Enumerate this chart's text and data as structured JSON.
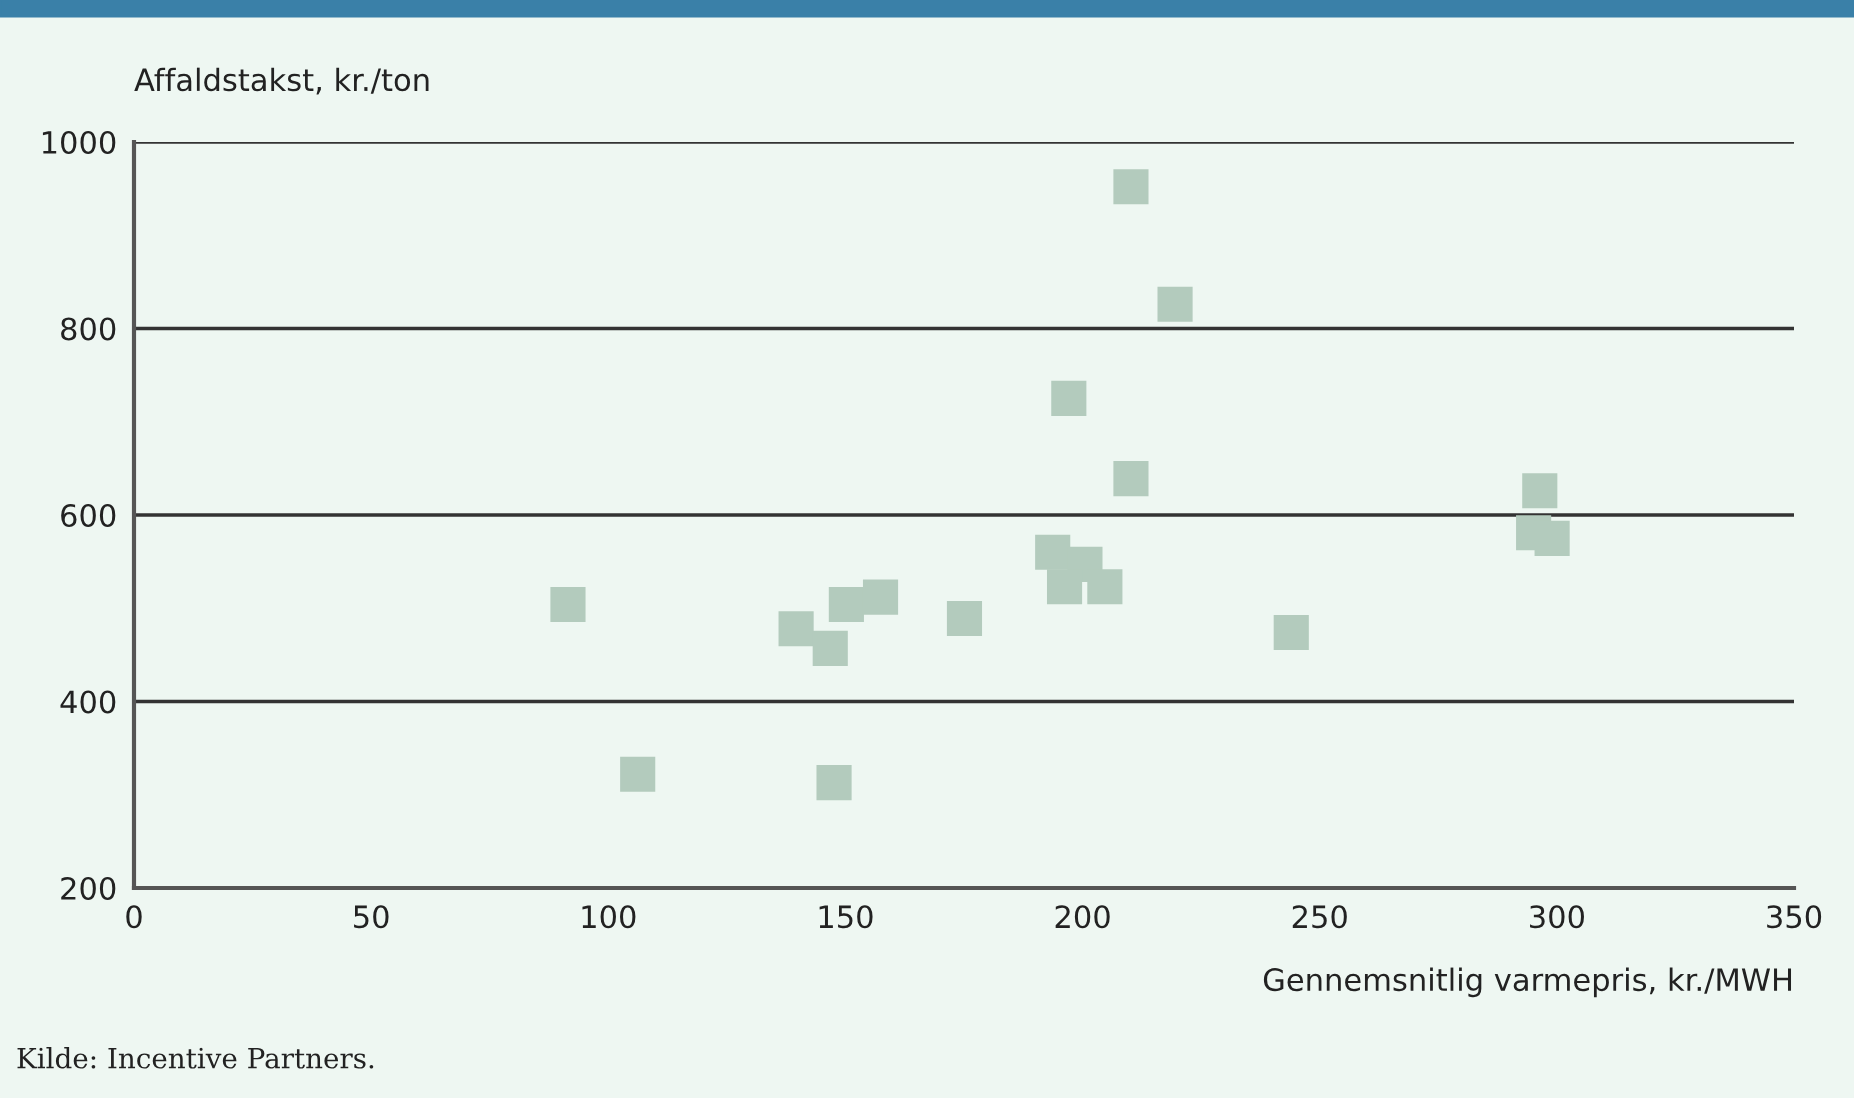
{
  "chart_data": {
    "type": "scatter",
    "ylabel": "Affaldstakst, kr./ton",
    "xlabel": "Gennemsnitlig varmepris, kr./MWH",
    "x": [
      91.5,
      139.6,
      146.8,
      150.2,
      157.4,
      106.2,
      147.6,
      210.2,
      219.5,
      197.1,
      210.2,
      296.4,
      295.1,
      299.0,
      193.7,
      200.5,
      196.2,
      204.7,
      175.1,
      244.0
    ],
    "series": [
      {
        "color": "#b3cbbd",
        "values": [
          504,
          478,
          457,
          504,
          512,
          322,
          313,
          952,
          826,
          725,
          639,
          626,
          581,
          575,
          560,
          547,
          523,
          523,
          489,
          474
        ]
      }
    ],
    "xlim": [
      0,
      350
    ],
    "xticks": [
      0,
      50,
      100,
      150,
      200,
      250,
      300,
      350
    ],
    "ylim": [
      200,
      1000
    ],
    "yticks": [
      200,
      400,
      600,
      800,
      1000
    ],
    "grid": "y",
    "marker": "square",
    "legend": false,
    "annotations": [
      "Kilde: Incentive Partners."
    ]
  }
}
